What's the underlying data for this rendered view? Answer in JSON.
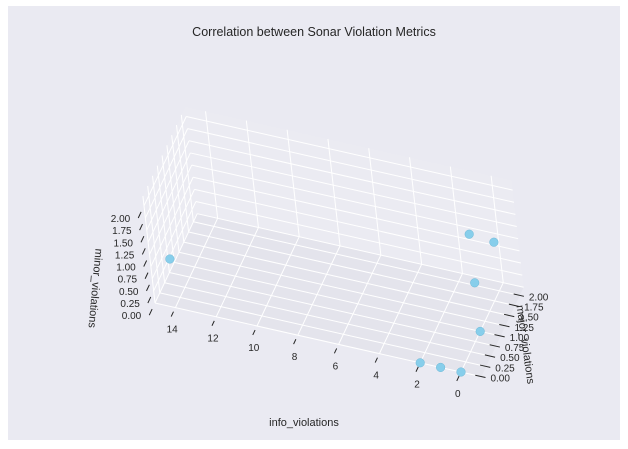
{
  "chart_data": {
    "type": "scatter",
    "projection": "3d",
    "title": "Correlation between Sonar Violation Metrics",
    "xlabel": "info_violations",
    "ylabel": "major_violations",
    "zlabel": "minor_violations",
    "xlim": [
      -1,
      15
    ],
    "ylim": [
      0,
      2.2
    ],
    "zlim": [
      0,
      2.2
    ],
    "x_ticks": [
      "14",
      "12",
      "10",
      "8",
      "6",
      "4",
      "2",
      "0"
    ],
    "y_ticks": [
      "0.00",
      "0.25",
      "0.50",
      "0.75",
      "1.00",
      "1.25",
      "1.50",
      "1.75",
      "2.00"
    ],
    "z_ticks": [
      "0.00",
      "0.25",
      "0.50",
      "0.75",
      "1.00",
      "1.25",
      "1.50",
      "1.75",
      "2.00"
    ],
    "grid": true,
    "point_color": "#87ceeb",
    "points": [
      {
        "x": 14,
        "y": 0,
        "z": 1
      },
      {
        "x": 2,
        "y": 0,
        "z": 0
      },
      {
        "x": 1,
        "y": 0,
        "z": 0
      },
      {
        "x": 0,
        "y": 0,
        "z": 0
      },
      {
        "x": 0,
        "y": 1,
        "z": 0
      },
      {
        "x": 0,
        "y": 1,
        "z": 1
      },
      {
        "x": 0,
        "y": 2,
        "z": 1
      },
      {
        "x": 0,
        "y": 1,
        "z": 2
      }
    ]
  }
}
